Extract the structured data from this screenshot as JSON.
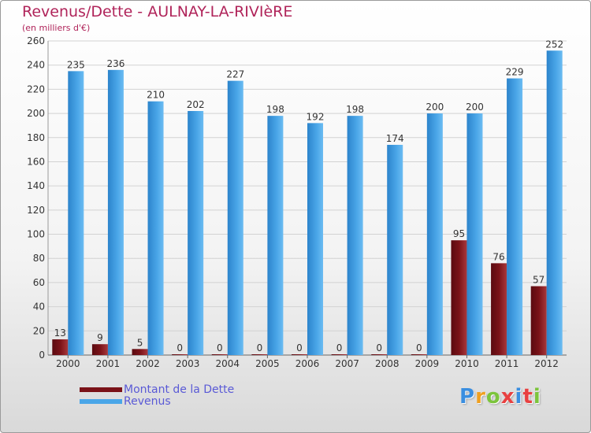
{
  "title": "Revenus/Dette - AULNAY-LA-RIVIèRE",
  "subtitle": "(en milliers d'€)",
  "logo": {
    "text": "Proxiti",
    "colors": [
      "#3a8ee0",
      "#f0a020",
      "#7cc43c",
      "#e84040",
      "#3a8ee0",
      "#e84040",
      "#7cc43c"
    ]
  },
  "colors": {
    "dette": "#7a1218",
    "revenus": "#4aa6e8",
    "title": "#b0245a",
    "legend_text": "#5a5ad6"
  },
  "legend": [
    {
      "label": "Montant de la Dette",
      "color": "#7a1218"
    },
    {
      "label": "Revenus",
      "color": "#4aa6e8"
    }
  ],
  "chart_data": {
    "type": "bar",
    "title": "Revenus/Dette - AULNAY-LA-RIVIèRE",
    "ylabel": "(en milliers d'€)",
    "categories": [
      "2000",
      "2001",
      "2002",
      "2003",
      "2004",
      "2005",
      "2006",
      "2007",
      "2008",
      "2009",
      "2010",
      "2011",
      "2012"
    ],
    "series": [
      {
        "name": "Montant de la Dette",
        "values": [
          13,
          9,
          5,
          0,
          0,
          0,
          0,
          0,
          0,
          0,
          95,
          76,
          57
        ]
      },
      {
        "name": "Revenus",
        "values": [
          235,
          236,
          210,
          202,
          227,
          198,
          192,
          198,
          174,
          200,
          200,
          229,
          252
        ]
      }
    ],
    "ylim": [
      0,
      260
    ],
    "yticks": [
      0,
      20,
      40,
      60,
      80,
      100,
      120,
      140,
      160,
      180,
      200,
      220,
      240,
      260
    ],
    "grid": true,
    "legend_position": "bottom-left"
  }
}
